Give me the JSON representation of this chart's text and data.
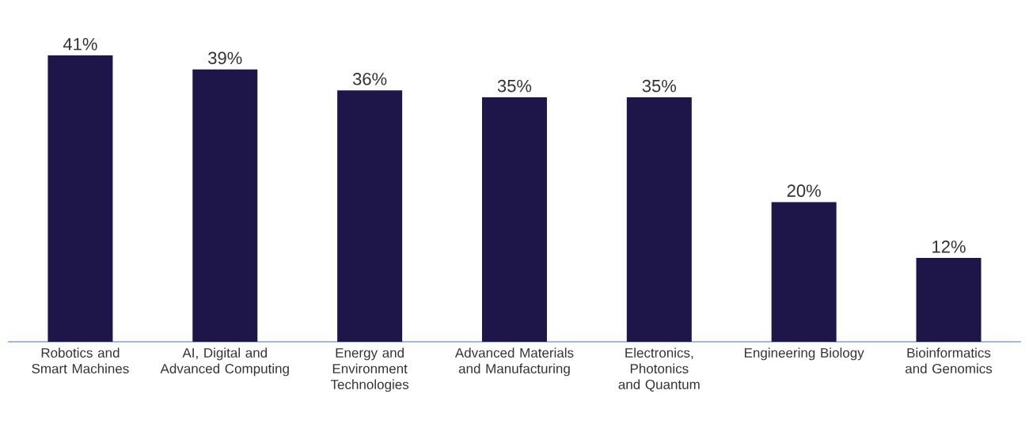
{
  "chart_data": {
    "type": "bar",
    "categories": [
      "Robotics and Smart Machines",
      "AI, Digital and Advanced Computing",
      "Energy and Environment Technologies",
      "Advanced Materials and Manufacturing",
      "Electronics, Photonics and Quantum",
      "Engineering Biology",
      "Bioinformatics and Genomics"
    ],
    "values": [
      41,
      39,
      36,
      35,
      35,
      20,
      12
    ],
    "value_labels": [
      "41%",
      "39%",
      "36%",
      "35%",
      "35%",
      "20%",
      "12%"
    ],
    "color": "#1e1548"
  }
}
